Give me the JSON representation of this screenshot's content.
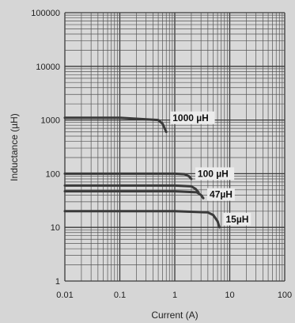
{
  "chart_data": {
    "type": "line",
    "title": "",
    "xlabel": "Current (A)",
    "ylabel": "Inductance (µH)",
    "xscale": "log",
    "yscale": "log",
    "xlim": [
      0.01,
      100
    ],
    "ylim": [
      1,
      100000
    ],
    "grid": true,
    "x_tick_labels": [
      "0.01",
      "0.1",
      "1",
      "10",
      "100"
    ],
    "y_tick_labels": [
      "1",
      "10",
      "100",
      "1000",
      "10000",
      "100000"
    ],
    "series": [
      {
        "name": "1000 µH",
        "x": [
          0.01,
          0.1,
          0.5,
          0.6,
          0.7
        ],
        "y": [
          1100,
          1100,
          1000,
          850,
          600
        ]
      },
      {
        "name": "100 µH",
        "x": [
          0.01,
          0.1,
          1,
          1.5,
          1.8,
          2.0
        ],
        "y": [
          100,
          100,
          100,
          98,
          90,
          80
        ]
      },
      {
        "name": "",
        "x": [
          0.01,
          0.1,
          1,
          2.0,
          2.4,
          2.7
        ],
        "y": [
          60,
          60,
          60,
          58,
          52,
          45
        ]
      },
      {
        "name": "47µH",
        "x": [
          0.01,
          0.1,
          1,
          2.5,
          3.0,
          3.3
        ],
        "y": [
          47,
          47,
          47,
          45,
          40,
          35
        ]
      },
      {
        "name": "15µH",
        "x": [
          0.01,
          0.1,
          1,
          4.0,
          5.0,
          6.0,
          6.5
        ],
        "y": [
          20,
          20,
          20,
          19,
          17,
          13,
          10
        ]
      }
    ]
  },
  "colors": {
    "background": "#d6d6d6",
    "plot_background": "#d9d9d9",
    "grid_major": "#3a3a3a",
    "grid_minor": "#555555",
    "curve": "#3a3a3a",
    "label_box": "#ececec"
  }
}
